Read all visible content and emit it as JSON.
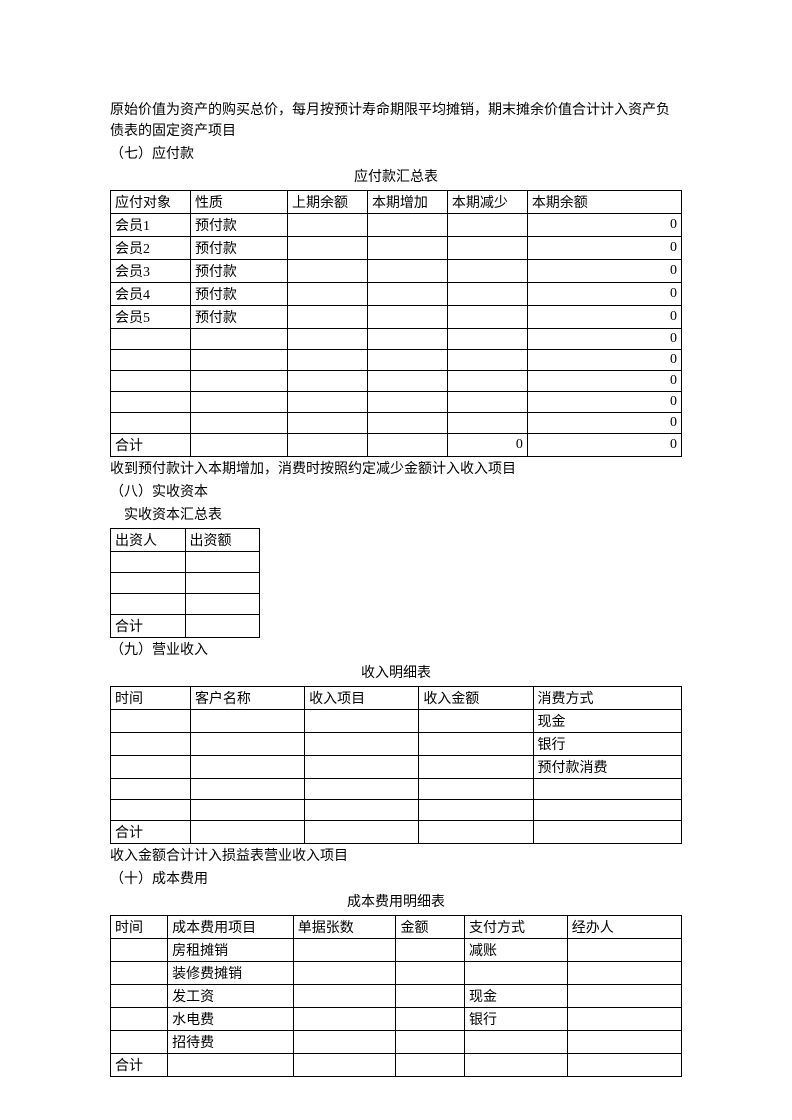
{
  "intro_text": "原始价值为资产的购买总价，每月按预计寿命期限平均摊销，期末摊余价值合计计入资产负债表的固定资产项目",
  "section7": "（七）应付款",
  "table1": {
    "title": "应付款汇总表",
    "headers": [
      "应付对象",
      "性质",
      "上期余额",
      "本期增加",
      "本期减少",
      "本期余额"
    ],
    "rows": [
      [
        "会员1",
        "预付款",
        "",
        "",
        "",
        "0"
      ],
      [
        "会员2",
        "预付款",
        "",
        "",
        "",
        "0"
      ],
      [
        "会员3",
        "预付款",
        "",
        "",
        "",
        "0"
      ],
      [
        "会员4",
        "预付款",
        "",
        "",
        "",
        "0"
      ],
      [
        "会员5",
        "预付款",
        "",
        "",
        "",
        "0"
      ],
      [
        "",
        "",
        "",
        "",
        "",
        "0"
      ],
      [
        "",
        "",
        "",
        "",
        "",
        "0"
      ],
      [
        "",
        "",
        "",
        "",
        "",
        "0"
      ],
      [
        "",
        "",
        "",
        "",
        "",
        "0"
      ],
      [
        "",
        "",
        "",
        "",
        "",
        "0"
      ],
      [
        "合计",
        "",
        "",
        "",
        "0",
        "0"
      ]
    ],
    "footer": "收到预付款计入本期增加，消费时按照约定减少金额计入收入项目"
  },
  "section8": "（八）实收资本",
  "table2": {
    "title": "实收资本汇总表",
    "headers": [
      "出资人",
      "出资额"
    ],
    "rows": [
      [
        "",
        ""
      ],
      [
        "",
        ""
      ],
      [
        "",
        ""
      ],
      [
        "合计",
        ""
      ]
    ]
  },
  "section9": "（九）营业收入",
  "table3": {
    "title": "收入明细表",
    "headers": [
      "时间",
      "客户名称",
      "收入项目",
      "收入金额",
      "消费方式"
    ],
    "rows": [
      [
        "",
        "",
        "",
        "",
        "现金"
      ],
      [
        "",
        "",
        "",
        "",
        "银行"
      ],
      [
        "",
        "",
        "",
        "",
        "预付款消费"
      ],
      [
        "",
        "",
        "",
        "",
        ""
      ],
      [
        "",
        "",
        "",
        "",
        ""
      ],
      [
        "合计",
        "",
        "",
        "",
        ""
      ]
    ],
    "footer": "收入金额合计计入损益表营业收入项目"
  },
  "section10": "（十）成本费用",
  "table4": {
    "title": "成本费用明细表",
    "headers": [
      "时间",
      "成本费用项目",
      "单据张数",
      "金额",
      "支付方式",
      "经办人"
    ],
    "rows": [
      [
        "",
        "房租摊销",
        "",
        "",
        "减账",
        ""
      ],
      [
        "",
        "装修费摊销",
        "",
        "",
        "",
        ""
      ],
      [
        "",
        "发工资",
        "",
        "",
        "现金",
        ""
      ],
      [
        "",
        "水电费",
        "",
        "",
        "银行",
        ""
      ],
      [
        "",
        "招待费",
        "",
        "",
        "",
        ""
      ],
      [
        "合计",
        "",
        "",
        "",
        "",
        ""
      ]
    ]
  },
  "col_widths": {
    "t1": [
      "14%",
      "17%",
      "14%",
      "14%",
      "14%",
      "27%"
    ],
    "t3": [
      "14%",
      "20%",
      "20%",
      "20%",
      "26%"
    ],
    "t4": [
      "10%",
      "22%",
      "18%",
      "12%",
      "18%",
      "20%"
    ]
  }
}
